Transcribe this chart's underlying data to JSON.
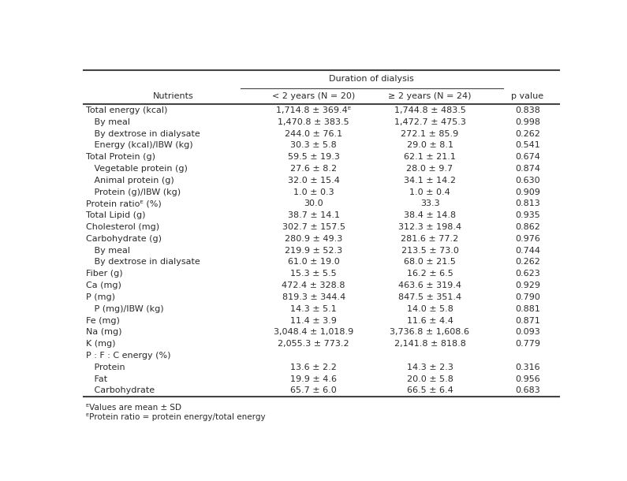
{
  "header_main": "Duration of dialysis",
  "col_header_1": "< 2 years (N = 20)",
  "col_header_2": "≥ 2 years (N = 24)",
  "col_header_p": "p value",
  "col_header_n": "Nutrients",
  "rows": [
    {
      "nutrient": "Total energy (kcal)",
      "col1": "1,714.8 ± 369.4ᴱ",
      "col2": "1,744.8 ± 483.5",
      "pval": "0.838",
      "indent": 0
    },
    {
      "nutrient": "   By meal",
      "col1": "1,470.8 ± 383.5",
      "col2": "1,472.7 ± 475.3",
      "pval": "0.998",
      "indent": 1
    },
    {
      "nutrient": "   By dextrose in dialysate",
      "col1": "244.0 ± 76.1",
      "col2": "272.1 ± 85.9",
      "pval": "0.262",
      "indent": 1
    },
    {
      "nutrient": "   Energy (kcal)/IBW (kg)",
      "col1": "30.3 ± 5.8",
      "col2": "29.0 ± 8.1",
      "pval": "0.541",
      "indent": 1
    },
    {
      "nutrient": "Total Protein (g)",
      "col1": "59.5 ± 19.3",
      "col2": "62.1 ± 21.1",
      "pval": "0.674",
      "indent": 0
    },
    {
      "nutrient": "   Vegetable protein (g)",
      "col1": "27.6 ± 8.2",
      "col2": "28.0 ± 9.7",
      "pval": "0.874",
      "indent": 1
    },
    {
      "nutrient": "   Animal protein (g)",
      "col1": "32.0 ± 15.4",
      "col2": "34.1 ± 14.2",
      "pval": "0.630",
      "indent": 1
    },
    {
      "nutrient": "   Protein (g)/IBW (kg)",
      "col1": "1.0 ± 0.3",
      "col2": "1.0 ± 0.4",
      "pval": "0.909",
      "indent": 1
    },
    {
      "nutrient": "Protein ratioᴱ (%)",
      "col1": "30.0",
      "col2": "33.3",
      "pval": "0.813",
      "indent": 0
    },
    {
      "nutrient": "Total Lipid (g)",
      "col1": "38.7 ± 14.1",
      "col2": "38.4 ± 14.8",
      "pval": "0.935",
      "indent": 0
    },
    {
      "nutrient": "Cholesterol (mg)",
      "col1": "302.7 ± 157.5",
      "col2": "312.3 ± 198.4",
      "pval": "0.862",
      "indent": 0
    },
    {
      "nutrient": "Carbohydrate (g)",
      "col1": "280.9 ± 49.3",
      "col2": "281.6 ± 77.2",
      "pval": "0.976",
      "indent": 0
    },
    {
      "nutrient": "   By meal",
      "col1": "219.9 ± 52.3",
      "col2": "213.5 ± 73.0",
      "pval": "0.744",
      "indent": 1
    },
    {
      "nutrient": "   By dextrose in dialysate",
      "col1": "61.0 ± 19.0",
      "col2": "68.0 ± 21.5",
      "pval": "0.262",
      "indent": 1
    },
    {
      "nutrient": "Fiber (g)",
      "col1": "15.3 ± 5.5",
      "col2": "16.2 ± 6.5",
      "pval": "0.623",
      "indent": 0
    },
    {
      "nutrient": "Ca (mg)",
      "col1": "472.4 ± 328.8",
      "col2": "463.6 ± 319.4",
      "pval": "0.929",
      "indent": 0
    },
    {
      "nutrient": "P (mg)",
      "col1": "819.3 ± 344.4",
      "col2": "847.5 ± 351.4",
      "pval": "0.790",
      "indent": 0
    },
    {
      "nutrient": "   P (mg)/IBW (kg)",
      "col1": "14.3 ± 5.1",
      "col2": "14.0 ± 5.8",
      "pval": "0.881",
      "indent": 1
    },
    {
      "nutrient": "Fe (mg)",
      "col1": "11.4 ± 3.9",
      "col2": "11.6 ± 4.4",
      "pval": "0.871",
      "indent": 0
    },
    {
      "nutrient": "Na (mg)",
      "col1": "3,048.4 ± 1,018.9",
      "col2": "3,736.8 ± 1,608.6",
      "pval": "0.093",
      "indent": 0
    },
    {
      "nutrient": "K (mg)",
      "col1": "2,055.3 ± 773.2",
      "col2": "2,141.8 ± 818.8",
      "pval": "0.779",
      "indent": 0
    },
    {
      "nutrient": "P : F : C energy (%)",
      "col1": "",
      "col2": "",
      "pval": "",
      "indent": 0
    },
    {
      "nutrient": "   Protein",
      "col1": "13.6 ± 2.2",
      "col2": "14.3 ± 2.3",
      "pval": "0.316",
      "indent": 1
    },
    {
      "nutrient": "   Fat",
      "col1": "19.9 ± 4.6",
      "col2": "20.0 ± 5.8",
      "pval": "0.956",
      "indent": 1
    },
    {
      "nutrient": "   Carbohydrate",
      "col1": "65.7 ± 6.0",
      "col2": "66.5 ± 6.4",
      "pval": "0.683",
      "indent": 1
    }
  ],
  "footnote1": "ᴱValues are mean ± SD",
  "footnote2": "ᴱProtein ratio = protein energy/total energy",
  "bg_color": "#ffffff",
  "text_color": "#2a2a2a",
  "line_color": "#444444",
  "font_size": 8.0,
  "header_font_size": 8.0
}
